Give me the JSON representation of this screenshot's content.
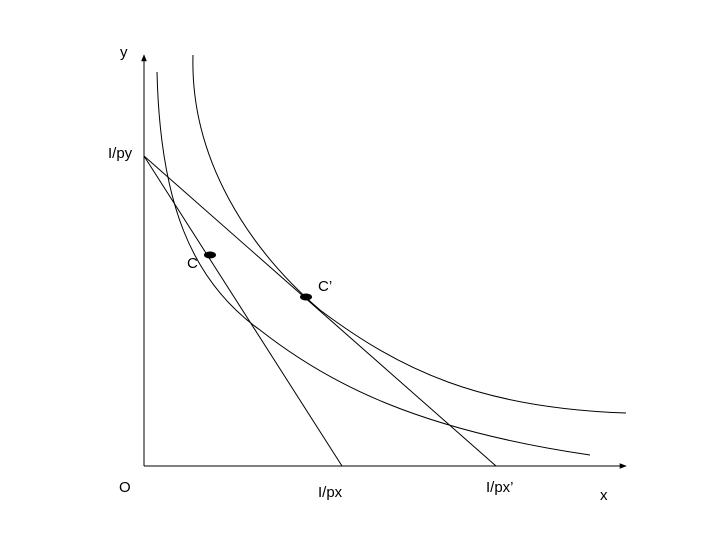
{
  "labels": {
    "y_axis": "y",
    "x_axis": "x",
    "origin": "O",
    "y_intercept": "I/py",
    "x_intercept_1": "I/px",
    "x_intercept_2": "I/px’",
    "point_1": "C",
    "point_2": "C’"
  },
  "elements": {
    "axes": 2,
    "indifference_curves": 2,
    "budget_lines": 2,
    "tangency_points": 2
  },
  "colors": {
    "ink": "#000000",
    "background": "#ffffff"
  }
}
